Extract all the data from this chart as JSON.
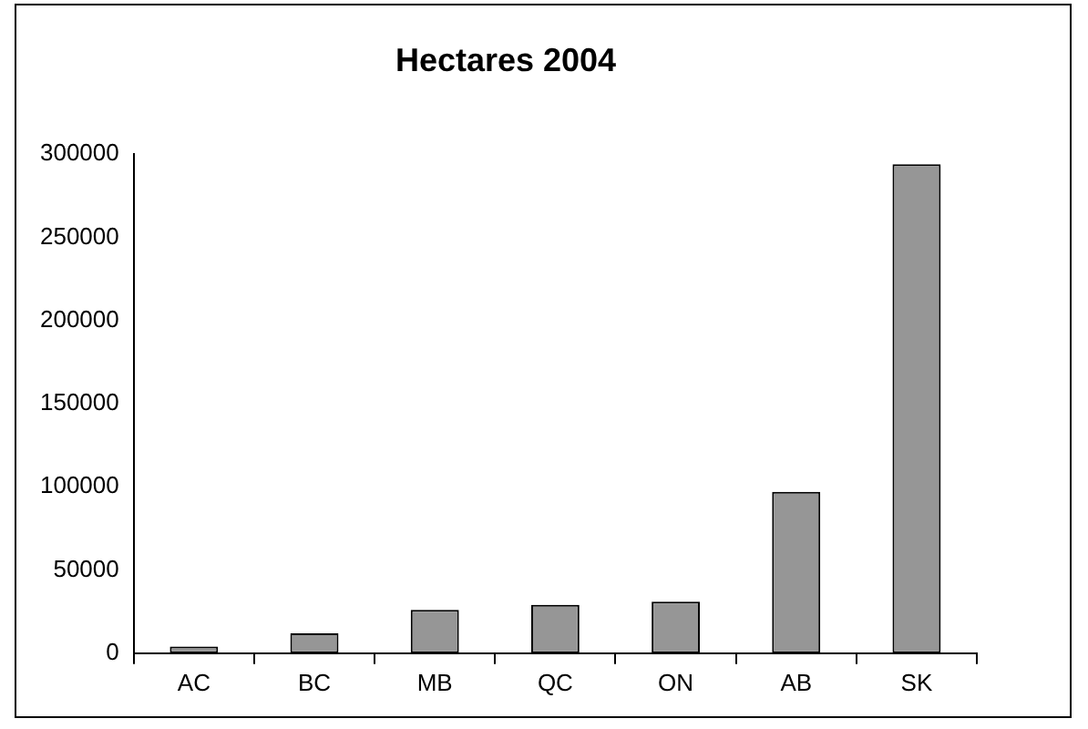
{
  "chart_data": {
    "type": "bar",
    "title": "Hectares 2004",
    "categories": [
      "AC",
      "BC",
      "MB",
      "QC",
      "ON",
      "AB",
      "SK"
    ],
    "values": [
      4000,
      12000,
      26000,
      29000,
      31000,
      97000,
      294000
    ],
    "color": "#969696",
    "ylim": [
      0,
      300000
    ],
    "yticks": [
      0,
      50000,
      100000,
      150000,
      200000,
      250000,
      300000
    ],
    "grid": false,
    "legend": false
  }
}
